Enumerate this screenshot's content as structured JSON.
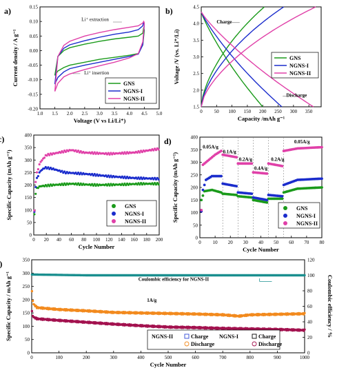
{
  "chart_data": [
    {
      "panel": "a)",
      "type": "line",
      "xlabel": "Voltage (V vs Li/Li⁺)",
      "ylabel": "Current density / A g⁻¹",
      "xlim": [
        1.0,
        5.0
      ],
      "ylim": [
        -0.2,
        0.15
      ],
      "xticks": [
        "1.0",
        "1.5",
        "2.0",
        "2.5",
        "3.0",
        "3.5",
        "4.0",
        "4.5",
        "5.0"
      ],
      "yticks": [
        "-0.20",
        "-0.15",
        "-0.10",
        "-0.05",
        "0.00",
        "0.05",
        "0.10",
        "0.15"
      ],
      "annotations": [
        "Li⁺ extraction",
        "Li⁺ insertion"
      ],
      "legend_position": "bottom-right",
      "series": [
        {
          "name": "GNS",
          "color": "#1a9a1a",
          "upper": [
            [
              1.5,
              -0.085
            ],
            [
              1.6,
              -0.02
            ],
            [
              1.8,
              0.0
            ],
            [
              2.0,
              0.01
            ],
            [
              2.5,
              0.022
            ],
            [
              3.0,
              0.032
            ],
            [
              3.5,
              0.04
            ],
            [
              4.0,
              0.046
            ],
            [
              4.3,
              0.05
            ],
            [
              4.45,
              0.06
            ],
            [
              4.48,
              0.08
            ],
            [
              4.5,
              0.07
            ]
          ],
          "lower": [
            [
              4.5,
              0.07
            ],
            [
              4.45,
              0.02
            ],
            [
              4.3,
              -0.01
            ],
            [
              4.0,
              -0.016
            ],
            [
              3.5,
              -0.023
            ],
            [
              3.0,
              -0.03
            ],
            [
              2.5,
              -0.04
            ],
            [
              2.0,
              -0.05
            ],
            [
              1.8,
              -0.058
            ],
            [
              1.6,
              -0.07
            ],
            [
              1.5,
              -0.085
            ]
          ]
        },
        {
          "name": "NGNS-I",
          "color": "#1a2ccc",
          "upper": [
            [
              1.5,
              -0.115
            ],
            [
              1.6,
              -0.02
            ],
            [
              1.8,
              0.008
            ],
            [
              2.0,
              0.02
            ],
            [
              2.5,
              0.034
            ],
            [
              3.0,
              0.046
            ],
            [
              3.5,
              0.056
            ],
            [
              4.0,
              0.064
            ],
            [
              4.3,
              0.072
            ],
            [
              4.45,
              0.085
            ],
            [
              4.48,
              0.1
            ],
            [
              4.5,
              0.09
            ]
          ],
          "lower": [
            [
              4.5,
              0.09
            ],
            [
              4.45,
              0.02
            ],
            [
              4.3,
              -0.012
            ],
            [
              4.0,
              -0.02
            ],
            [
              3.5,
              -0.03
            ],
            [
              3.0,
              -0.04
            ],
            [
              2.5,
              -0.05
            ],
            [
              2.0,
              -0.062
            ],
            [
              1.8,
              -0.073
            ],
            [
              1.6,
              -0.092
            ],
            [
              1.5,
              -0.115
            ]
          ]
        },
        {
          "name": "NGNS-II",
          "color": "#e040a8",
          "upper": [
            [
              1.5,
              -0.14
            ],
            [
              1.6,
              -0.02
            ],
            [
              1.8,
              0.018
            ],
            [
              2.0,
              0.032
            ],
            [
              2.5,
              0.05
            ],
            [
              3.0,
              0.062
            ],
            [
              3.5,
              0.072
            ],
            [
              4.0,
              0.08
            ],
            [
              4.3,
              0.085
            ],
            [
              4.45,
              0.095
            ],
            [
              4.48,
              0.1
            ],
            [
              4.5,
              0.095
            ]
          ],
          "lower": [
            [
              4.5,
              0.095
            ],
            [
              4.45,
              0.03
            ],
            [
              4.3,
              -0.01
            ],
            [
              4.0,
              -0.025
            ],
            [
              3.5,
              -0.04
            ],
            [
              3.0,
              -0.052
            ],
            [
              2.5,
              -0.065
            ],
            [
              2.0,
              -0.08
            ],
            [
              1.8,
              -0.09
            ],
            [
              1.6,
              -0.112
            ],
            [
              1.5,
              -0.14
            ]
          ]
        }
      ]
    },
    {
      "panel": "b)",
      "type": "line",
      "xlabel": "Capacity /mAh g⁻¹",
      "ylabel": "Voltage /V (vs. Li⁺/Li)",
      "xlim": [
        0,
        390
      ],
      "ylim": [
        1.5,
        4.5
      ],
      "xticks": [
        "0",
        "50",
        "100",
        "150",
        "200",
        "250",
        "300",
        "350"
      ],
      "yticks": [
        "1.5",
        "2.0",
        "2.5",
        "3.0",
        "3.5",
        "4.0",
        "4.5"
      ],
      "annotations": [
        "Charge",
        "Discharge"
      ],
      "legend_position": "center-right",
      "series": [
        {
          "name": "GNS",
          "color": "#1a9a1a",
          "discharge_capacity": 200,
          "charge_capacity": 205
        },
        {
          "name": "NGNS-I",
          "color": "#1a2ccc",
          "discharge_capacity": 262,
          "charge_capacity": 268
        },
        {
          "name": "NGNS-II",
          "color": "#e040a8",
          "discharge_capacity": 365,
          "charge_capacity": 372
        }
      ]
    },
    {
      "panel": "c)",
      "type": "scatter",
      "xlabel": "Cycle Number",
      "ylabel": "Specific Capacity (mAh g⁻¹)",
      "xlim": [
        0,
        200
      ],
      "ylim": [
        0,
        400
      ],
      "xticks": [
        "0",
        "20",
        "40",
        "60",
        "80",
        "100",
        "120",
        "140",
        "160",
        "180",
        "200"
      ],
      "yticks": [
        "0",
        "50",
        "100",
        "150",
        "200",
        "250",
        "300",
        "350",
        "400"
      ],
      "legend_position": "bottom-right",
      "series": [
        {
          "name": "GNS",
          "color": "#1a9a1a",
          "points": [
            [
              1,
              80
            ],
            [
              2,
              150
            ],
            [
              4,
              185
            ],
            [
              10,
              195
            ],
            [
              30,
              200
            ],
            [
              60,
              205
            ],
            [
              100,
              200
            ],
            [
              140,
              202
            ],
            [
              170,
              205
            ],
            [
              200,
              205
            ]
          ]
        },
        {
          "name": "NGNS-I",
          "color": "#1a2ccc",
          "points": [
            [
              1,
              90
            ],
            [
              2,
              170
            ],
            [
              4,
              220
            ],
            [
              10,
              255
            ],
            [
              18,
              270
            ],
            [
              30,
              265
            ],
            [
              50,
              250
            ],
            [
              80,
              245
            ],
            [
              120,
              235
            ],
            [
              160,
              228
            ],
            [
              200,
              225
            ]
          ]
        },
        {
          "name": "NGNS-II",
          "color": "#e040a8",
          "points": [
            [
              1,
              95
            ],
            [
              2,
              190
            ],
            [
              4,
              240
            ],
            [
              10,
              290
            ],
            [
              20,
              320
            ],
            [
              40,
              330
            ],
            [
              60,
              340
            ],
            [
              80,
              330
            ],
            [
              120,
              325
            ],
            [
              160,
              330
            ],
            [
              200,
              345
            ]
          ]
        }
      ]
    },
    {
      "panel": "d)",
      "type": "scatter",
      "xlabel": "Cycle Number",
      "ylabel": "Specific Capacity (mAh g⁻¹)",
      "xlim": [
        0,
        80
      ],
      "ylim": [
        0,
        400
      ],
      "xticks": [
        "0",
        "10",
        "20",
        "30",
        "40",
        "50",
        "60",
        "70",
        "80"
      ],
      "yticks": [
        "0",
        "50",
        "100",
        "150",
        "200",
        "250",
        "300",
        "350",
        "400"
      ],
      "rate_labels": [
        "0.05A/g",
        "0.1A/g",
        "0.2A/g",
        "0.4A/g",
        "0.2A/g",
        "0.05A/g"
      ],
      "legend_position": "bottom-right",
      "series": [
        {
          "name": "GNS",
          "color": "#1a9a1a",
          "segments": [
            [
              [
                1,
                150
              ],
              [
                3,
                185
              ],
              [
                8,
                190
              ],
              [
                14,
                180
              ]
            ],
            [
              [
                15,
                175
              ],
              [
                24,
                170
              ]
            ],
            [
              [
                25,
                165
              ],
              [
                34,
                160
              ]
            ],
            [
              [
                35,
                150
              ],
              [
                44,
                140
              ]
            ],
            [
              [
                45,
                155
              ],
              [
                54,
                155
              ]
            ],
            [
              [
                55,
                180
              ],
              [
                64,
                195
              ],
              [
                80,
                200
              ]
            ]
          ]
        },
        {
          "name": "NGNS-I",
          "color": "#1a2ccc",
          "segments": [
            [
              [
                1,
                105
              ],
              [
                2,
                190
              ],
              [
                4,
                230
              ],
              [
                8,
                245
              ],
              [
                14,
                245
              ]
            ],
            [
              [
                15,
                215
              ],
              [
                24,
                205
              ]
            ],
            [
              [
                25,
                180
              ],
              [
                34,
                175
              ]
            ],
            [
              [
                35,
                160
              ],
              [
                44,
                150
              ]
            ],
            [
              [
                45,
                170
              ],
              [
                54,
                165
              ]
            ],
            [
              [
                55,
                210
              ],
              [
                64,
                230
              ],
              [
                80,
                235
              ]
            ]
          ]
        },
        {
          "name": "NGNS-II",
          "color": "#e040a8",
          "segments": [
            [
              [
                1,
                110
              ],
              [
                2,
                290
              ],
              [
                6,
                310
              ],
              [
                10,
                330
              ],
              [
                14,
                345
              ]
            ],
            [
              [
                15,
                330
              ],
              [
                24,
                320
              ]
            ],
            [
              [
                25,
                295
              ],
              [
                34,
                295
              ]
            ],
            [
              [
                35,
                260
              ],
              [
                44,
                255
              ]
            ],
            [
              [
                45,
                295
              ],
              [
                54,
                285
              ]
            ],
            [
              [
                55,
                345
              ],
              [
                64,
                355
              ],
              [
                80,
                360
              ]
            ]
          ]
        }
      ]
    },
    {
      "panel": "e)",
      "type": "scatter",
      "xlabel": "Cycle Number",
      "ylabel": "Specific Capacity / mAh g⁻¹",
      "y2label": "Coulombic efficiency / %",
      "xlim": [
        0,
        1000
      ],
      "ylim": [
        0,
        350
      ],
      "y2lim": [
        0,
        120
      ],
      "xticks": [
        "0",
        "100",
        "200",
        "300",
        "400",
        "500",
        "600",
        "700",
        "800",
        "900",
        "1000"
      ],
      "yticks": [
        "0",
        "50",
        "100",
        "150",
        "200",
        "250",
        "300",
        "350"
      ],
      "y2ticks": [
        "0",
        "20",
        "40",
        "60",
        "80",
        "100",
        "120"
      ],
      "rate_label": "1A/g",
      "annotations": [
        "Coulombic efficiency for NGNS-II"
      ],
      "legend_position": "bottom-center",
      "legend": [
        {
          "group": "NGNS-II",
          "entries": [
            "Charge",
            "Discharge"
          ]
        },
        {
          "group": "NGNS-I",
          "entries": [
            "Charge",
            "Discharge"
          ]
        }
      ],
      "series": [
        {
          "name": "NGNS-II",
          "color": "#f28a1e",
          "points": [
            [
              1,
              230
            ],
            [
              5,
              185
            ],
            [
              20,
              170
            ],
            [
              100,
              163
            ],
            [
              200,
              158
            ],
            [
              300,
              152
            ],
            [
              400,
              150
            ],
            [
              500,
              148
            ],
            [
              600,
              146
            ],
            [
              700,
              143
            ],
            [
              760,
              138
            ],
            [
              800,
              143
            ],
            [
              900,
              145
            ],
            [
              1000,
              147
            ]
          ]
        },
        {
          "name": "NGNS-I",
          "color": "#a3124f",
          "points": [
            [
              1,
              155
            ],
            [
              5,
              135
            ],
            [
              20,
              128
            ],
            [
              100,
              122
            ],
            [
              200,
              115
            ],
            [
              300,
              108
            ],
            [
              400,
              102
            ],
            [
              500,
              97
            ],
            [
              600,
              95
            ],
            [
              700,
              92
            ],
            [
              800,
              90
            ],
            [
              900,
              88
            ],
            [
              1000,
              85
            ]
          ]
        },
        {
          "name": "Coulombic efficiency for NGNS-II",
          "color": "#1a8f8f",
          "axis": "right",
          "points": [
            [
              0,
              101
            ],
            [
              200,
              100
            ],
            [
              400,
              100
            ],
            [
              600,
              100
            ],
            [
              800,
              100
            ],
            [
              1000,
              100
            ]
          ]
        }
      ]
    }
  ]
}
